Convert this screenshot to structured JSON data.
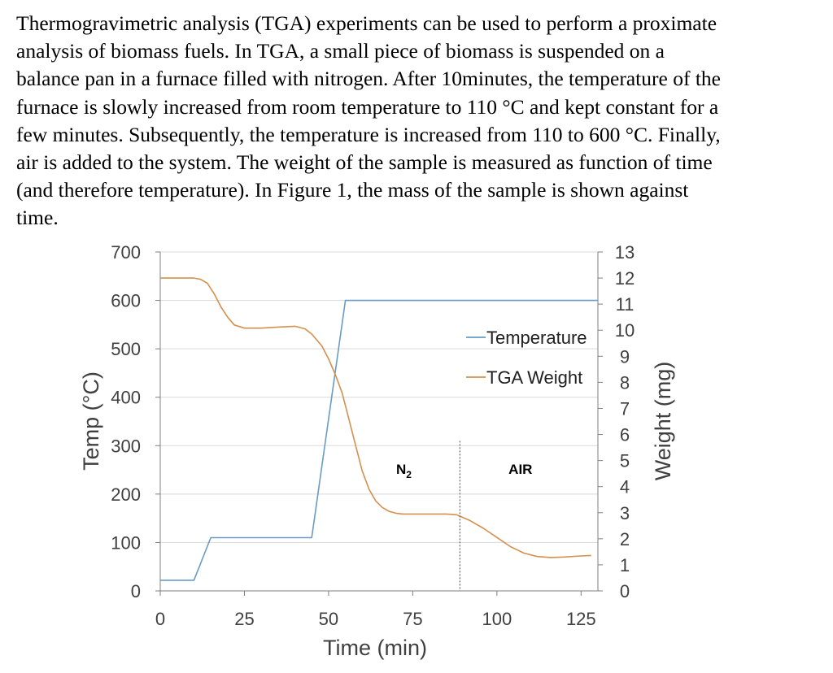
{
  "paragraph": {
    "lines": [
      "Thermogravimetric analysis (TGA) experiments can be used to perform a proximate",
      "analysis of biomass fuels. In TGA, a small piece of biomass is suspended on a",
      "balance pan in a furnace filled with nitrogen. After 10minutes, the temperature of the",
      "furnace is slowly increased from room temperature to 110 °C and kept constant for a",
      "few minutes. Subsequently, the temperature is increased from 110 to 600 °C. Finally,",
      "air is added to the system. The weight of the sample is measured as function of time",
      "(and therefore temperature). In Figure 1, the mass of the sample is shown against",
      "time."
    ]
  },
  "chart_data": {
    "type": "line",
    "xlabel": "Time (min)",
    "ylabel": "Temp (°C)",
    "y2label": "Weight (mg)",
    "xlim": [
      0,
      130
    ],
    "ylim": [
      0,
      700
    ],
    "y2lim": [
      0,
      13
    ],
    "xticks": [
      0,
      25,
      50,
      75,
      100,
      125
    ],
    "yticks": [
      0,
      100,
      200,
      300,
      400,
      500,
      600,
      700
    ],
    "y2ticks": [
      0,
      1,
      2,
      3,
      4,
      5,
      6,
      7,
      8,
      9,
      10,
      11,
      12,
      13
    ],
    "grid": "horizontal",
    "legend_position": "top-right",
    "colors": {
      "temperature": "#6a9bc5",
      "weight": "#d4904d",
      "grid": "#d9d9d9",
      "axis": "#7f7f7f",
      "divider": "#666666"
    },
    "series": [
      {
        "name": "Temperature",
        "axis": "left",
        "x": [
          0,
          10,
          15,
          45,
          55,
          130
        ],
        "y": [
          22,
          22,
          110,
          110,
          600,
          600
        ]
      },
      {
        "name": "TGA Weight",
        "axis": "right",
        "x": [
          0,
          10,
          12,
          14,
          16,
          18,
          20,
          22,
          25,
          30,
          35,
          40,
          43,
          45,
          48,
          50,
          52,
          54,
          56,
          58,
          60,
          62,
          64,
          66,
          68,
          70,
          72,
          75,
          80,
          85,
          88,
          92,
          96,
          100,
          104,
          108,
          112,
          116,
          120,
          125,
          128
        ],
        "y": [
          12.0,
          12.0,
          11.95,
          11.8,
          11.4,
          10.9,
          10.5,
          10.2,
          10.08,
          10.08,
          10.12,
          10.15,
          10.05,
          9.85,
          9.4,
          8.9,
          8.3,
          7.6,
          6.6,
          5.6,
          4.6,
          3.9,
          3.45,
          3.2,
          3.05,
          2.98,
          2.95,
          2.95,
          2.95,
          2.95,
          2.92,
          2.7,
          2.4,
          2.05,
          1.7,
          1.45,
          1.32,
          1.28,
          1.3,
          1.34,
          1.36
        ]
      }
    ],
    "annotations": [
      {
        "text": "N",
        "subscript": "2",
        "x": 72,
        "y": 250
      },
      {
        "text": "AIR",
        "x": 107,
        "y": 250
      }
    ],
    "divider": {
      "x": 89,
      "y_top": 310,
      "y_bottom": 0
    }
  }
}
